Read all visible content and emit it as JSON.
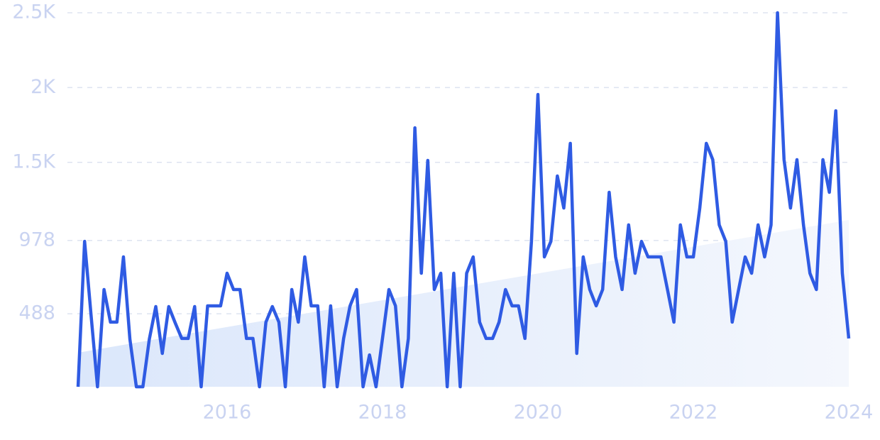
{
  "chart_data": {
    "type": "line",
    "x": [
      2014.083,
      2014.167,
      2014.25,
      2014.333,
      2014.417,
      2014.5,
      2014.583,
      2014.667,
      2014.75,
      2014.833,
      2014.917,
      2015,
      2015.083,
      2015.167,
      2015.25,
      2015.333,
      2015.417,
      2015.5,
      2015.583,
      2015.667,
      2015.75,
      2015.833,
      2015.917,
      2016,
      2016.083,
      2016.167,
      2016.25,
      2016.333,
      2016.417,
      2016.5,
      2016.583,
      2016.667,
      2016.75,
      2016.833,
      2016.917,
      2017,
      2017.083,
      2017.167,
      2017.25,
      2017.333,
      2017.417,
      2017.5,
      2017.583,
      2017.667,
      2017.75,
      2017.833,
      2017.917,
      2018,
      2018.083,
      2018.167,
      2018.25,
      2018.333,
      2018.417,
      2018.5,
      2018.583,
      2018.667,
      2018.75,
      2018.833,
      2018.917,
      2019,
      2019.083,
      2019.167,
      2019.25,
      2019.333,
      2019.417,
      2019.5,
      2019.583,
      2019.667,
      2019.75,
      2019.833,
      2019.917,
      2020,
      2020.083,
      2020.167,
      2020.25,
      2020.333,
      2020.417,
      2020.5,
      2020.583,
      2020.667,
      2020.75,
      2020.833,
      2020.917,
      2021,
      2021.083,
      2021.167,
      2021.25,
      2021.333,
      2021.417,
      2021.5,
      2021.583,
      2021.667,
      2021.75,
      2021.833,
      2021.917,
      2022,
      2022.083,
      2022.167,
      2022.25,
      2022.333,
      2022.417,
      2022.5,
      2022.583,
      2022.667,
      2022.75,
      2022.833,
      2022.917,
      2023,
      2023.083,
      2023.167,
      2023.25,
      2023.333,
      2023.417,
      2023.5,
      2023.583,
      2023.667,
      2023.75,
      2023.833,
      2023.917,
      2024
    ],
    "series": [
      {
        "color": "#2f5be3",
        "values": [
          0,
          972,
          480,
          0,
          650,
          432,
          432,
          868,
          318,
          0,
          0,
          318,
          536,
          223,
          536,
          427,
          323,
          323,
          536,
          0,
          541,
          541,
          541,
          759,
          650,
          650,
          323,
          323,
          0,
          432,
          536,
          432,
          0,
          650,
          432,
          868,
          541,
          541,
          0,
          541,
          0,
          323,
          541,
          650,
          0,
          213,
          0,
          323,
          650,
          541,
          0,
          323,
          1731,
          759,
          1513,
          650,
          759,
          0,
          759,
          0,
          759,
          868,
          432,
          323,
          323,
          432,
          650,
          541,
          541,
          323,
          972,
          1954,
          868,
          972,
          1409,
          1195,
          1627,
          223,
          868,
          650,
          541,
          650,
          1300,
          868,
          650,
          1082,
          759,
          972,
          868,
          868,
          868,
          650,
          432,
          1082,
          868,
          868,
          1195,
          1627,
          1518,
          1082,
          972,
          432,
          650,
          868,
          759,
          1082,
          868,
          1082,
          2500,
          1518,
          1195,
          1518,
          1082,
          759,
          650,
          1518,
          1300,
          1845,
          759,
          323
        ]
      }
    ],
    "trend": {
      "x": [
        2014.083,
        2024
      ],
      "values": [
        228,
        1115
      ],
      "color": "#dbe7fb"
    },
    "xlim": [
      2014.083,
      2024
    ],
    "xticks": [
      2016,
      2018,
      2020,
      2022,
      2024
    ],
    "ylim": [
      0,
      2500
    ],
    "yticks": [
      488,
      978,
      {
        "value": 1500,
        "label": "1.5K"
      },
      {
        "value": 2000,
        "label": "2K"
      },
      {
        "value": 2500,
        "label": "2.5K"
      }
    ],
    "grid": true
  }
}
